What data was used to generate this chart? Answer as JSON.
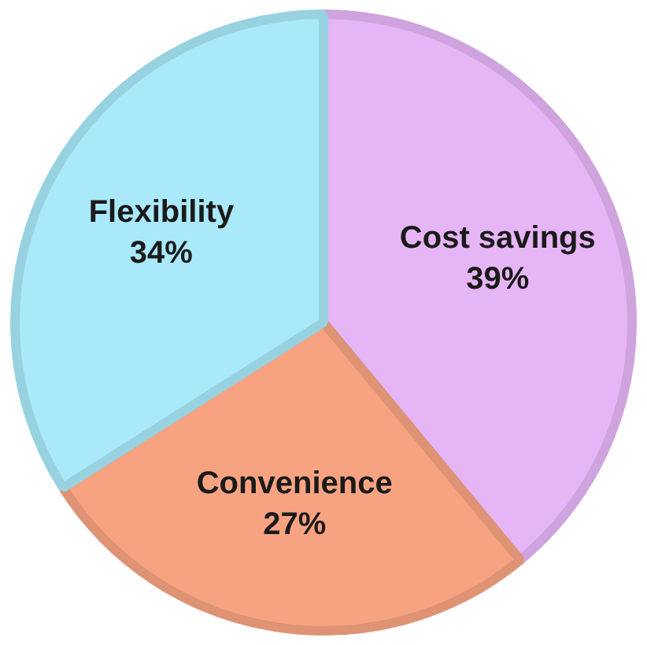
{
  "chart_data": {
    "type": "pie",
    "categories": [
      "Cost savings",
      "Convenience",
      "Flexibility"
    ],
    "values": [
      39,
      27,
      34
    ],
    "colors": [
      "#e6b5f6",
      "#f7a382",
      "#a9e9f9"
    ],
    "value_labels": [
      "39%",
      "27%",
      "34%"
    ],
    "legend": false
  }
}
